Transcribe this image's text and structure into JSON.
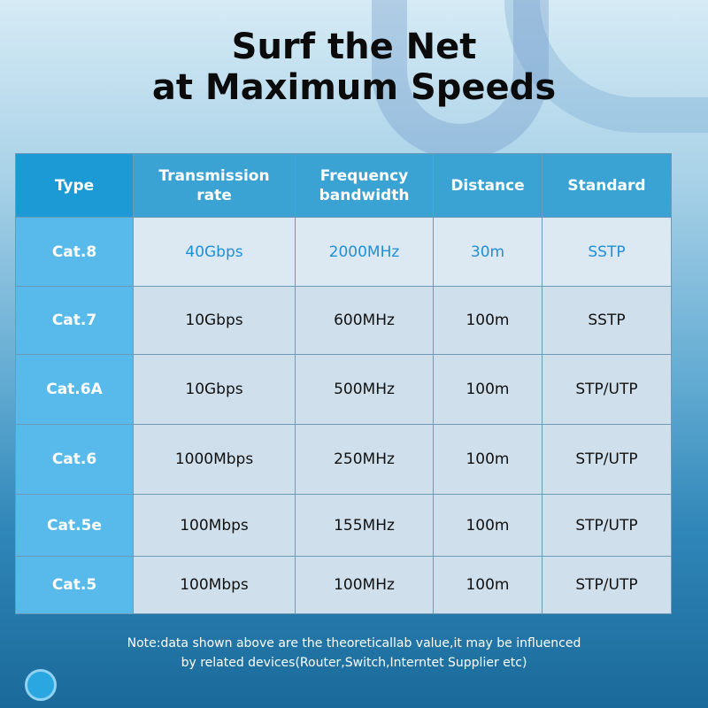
{
  "title_line1": "Surf the Net",
  "title_line2": "at Maximum Speeds",
  "table": {
    "headers": [
      "Type",
      "Transmission rate",
      "Frequency bandwidth",
      "Distance",
      "Standard"
    ],
    "rows": [
      [
        "Cat.8",
        "40Gbps",
        "2000MHz",
        "30m",
        "SSTP"
      ],
      [
        "Cat.7",
        "10Gbps",
        "600MHz",
        "100m",
        "SSTP"
      ],
      [
        "Cat.6A",
        "10Gbps",
        "500MHz",
        "100m",
        "STP/UTP"
      ],
      [
        "Cat.6",
        "1000Mbps",
        "250MHz",
        "100m",
        "STP/UTP"
      ],
      [
        "Cat.5e",
        "100Mbps",
        "155MHz",
        "100m",
        "STP/UTP"
      ],
      [
        "Cat.5",
        "100Mbps",
        "100MHz",
        "100m",
        "STP/UTP"
      ]
    ]
  },
  "note_line1": "Note:data shown above are the theoreticallab value,it may be influenced",
  "note_line2": "by related devices(Router,Switch,Interntet Supplier etc)",
  "colors": {
    "header": "#3ba3d4",
    "type_header": "#1b9ad6",
    "type_column": "#57baea",
    "highlight_text": "#1f8fd6"
  },
  "icons": [
    "globe-icon"
  ]
}
